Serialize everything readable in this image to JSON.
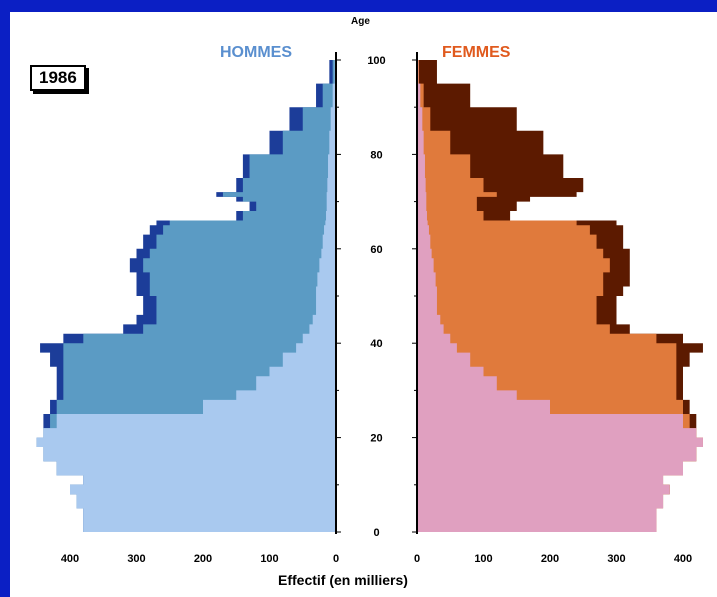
{
  "chart_data": {
    "type": "population-pyramid",
    "year": "1986",
    "xlabel": "Effectif (en milliers)",
    "ylabel": "Age",
    "age_ticks": [
      0,
      20,
      40,
      60,
      80,
      100
    ],
    "left_ticks": [
      400,
      300,
      200,
      100,
      0
    ],
    "right_ticks": [
      0,
      100,
      200,
      300,
      400
    ],
    "xlim": [
      0,
      450
    ],
    "ylim": [
      0,
      100
    ],
    "panels": [
      {
        "name": "HOMMES",
        "side": "left",
        "colors": {
          "young": "#a9c9ef",
          "adult": "#5b9bc4",
          "excess": "#1c3d99"
        },
        "ages": [
          0,
          5,
          8,
          10,
          12,
          15,
          18,
          20,
          22,
          25,
          28,
          30,
          33,
          35,
          38,
          40,
          42,
          44,
          46,
          48,
          50,
          52,
          55,
          58,
          60,
          63,
          65,
          66,
          68,
          70,
          71,
          72,
          75,
          80,
          85,
          90,
          95,
          100
        ],
        "total": [
          380,
          390,
          400,
          380,
          420,
          440,
          450,
          440,
          440,
          430,
          420,
          420,
          420,
          430,
          445,
          410,
          320,
          300,
          290,
          290,
          300,
          300,
          310,
          300,
          290,
          280,
          270,
          150,
          130,
          150,
          180,
          150,
          140,
          100,
          70,
          30,
          10,
          0
        ],
        "adult_edge": [
          0,
          0,
          0,
          0,
          0,
          0,
          0,
          0,
          430,
          420,
          410,
          410,
          410,
          410,
          410,
          380,
          290,
          270,
          270,
          270,
          280,
          280,
          290,
          280,
          270,
          260,
          250,
          140,
          120,
          140,
          170,
          140,
          130,
          80,
          50,
          20,
          5,
          0
        ],
        "young_edge": [
          380,
          390,
          400,
          380,
          420,
          440,
          450,
          440,
          420,
          200,
          150,
          120,
          100,
          80,
          60,
          50,
          40,
          35,
          30,
          30,
          30,
          28,
          25,
          22,
          20,
          18,
          16,
          15,
          14,
          14,
          14,
          13,
          12,
          10,
          8,
          5,
          2,
          0
        ]
      },
      {
        "name": "FEMMES",
        "side": "right",
        "colors": {
          "young": "#e0a0c0",
          "adult": "#e07a3c",
          "excess": "#5c1a00"
        },
        "ages": [
          0,
          5,
          8,
          10,
          12,
          15,
          18,
          20,
          22,
          25,
          28,
          30,
          33,
          35,
          38,
          40,
          42,
          44,
          46,
          48,
          50,
          52,
          55,
          58,
          60,
          63,
          65,
          66,
          68,
          70,
          71,
          72,
          75,
          80,
          85,
          90,
          95,
          100
        ],
        "total": [
          360,
          370,
          380,
          370,
          400,
          420,
          430,
          420,
          420,
          410,
          400,
          400,
          400,
          410,
          430,
          400,
          320,
          300,
          300,
          300,
          310,
          320,
          320,
          320,
          310,
          310,
          300,
          140,
          150,
          170,
          240,
          250,
          220,
          190,
          150,
          80,
          30,
          0
        ],
        "adult_edge": [
          0,
          0,
          0,
          0,
          0,
          0,
          0,
          0,
          410,
          400,
          390,
          390,
          390,
          390,
          390,
          360,
          290,
          270,
          270,
          270,
          280,
          280,
          290,
          280,
          270,
          260,
          240,
          100,
          90,
          90,
          120,
          100,
          80,
          50,
          20,
          10,
          3,
          0
        ],
        "young_edge": [
          360,
          370,
          380,
          370,
          400,
          420,
          430,
          420,
          400,
          200,
          150,
          120,
          100,
          80,
          60,
          50,
          40,
          35,
          30,
          30,
          30,
          28,
          25,
          22,
          20,
          18,
          16,
          15,
          14,
          14,
          14,
          13,
          12,
          10,
          8,
          5,
          2,
          0
        ]
      }
    ]
  }
}
